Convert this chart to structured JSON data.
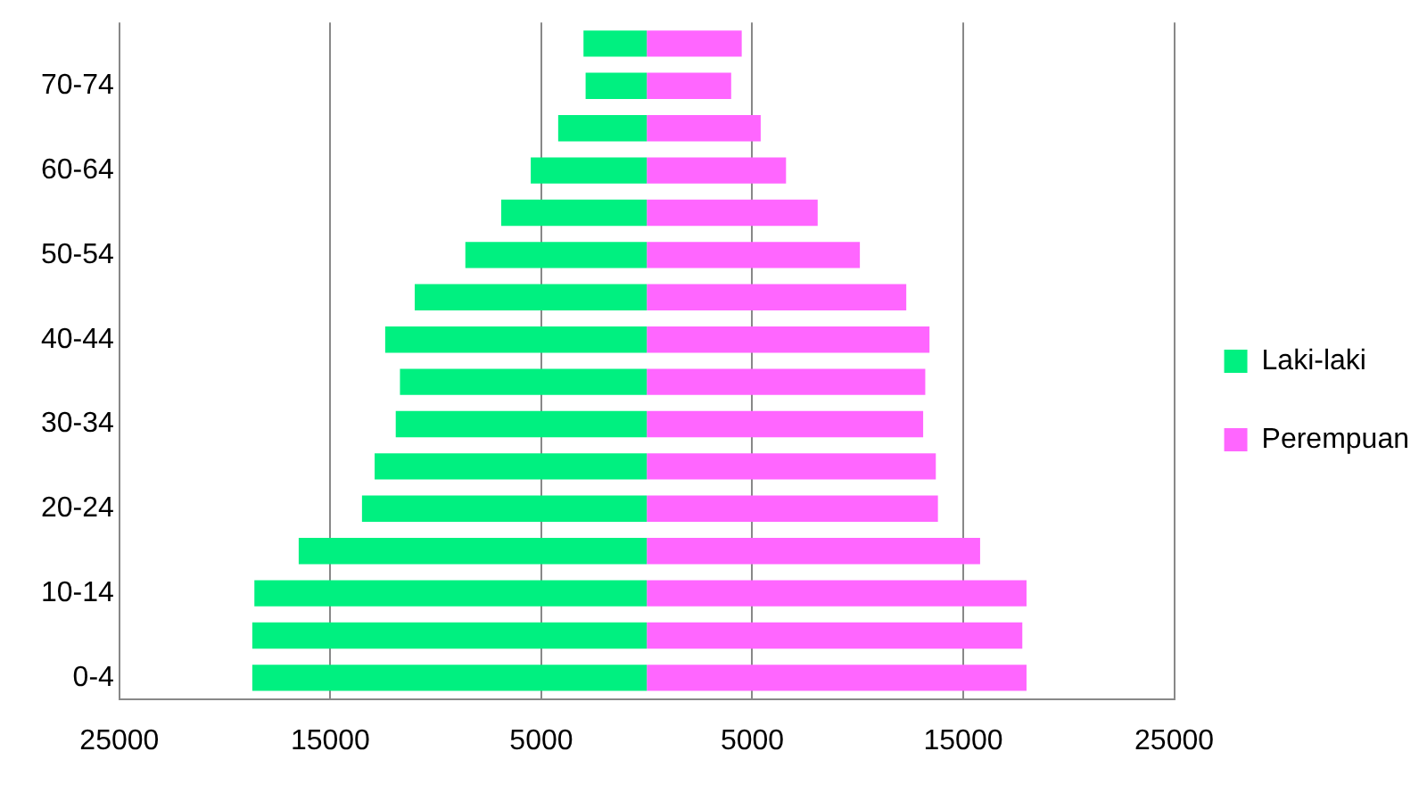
{
  "chart_data": {
    "type": "bar",
    "orientation": "horizontal",
    "stacked": true,
    "categories": [
      null,
      "70-74",
      null,
      "60-64",
      null,
      "50-54",
      null,
      "40-44",
      null,
      "30-34",
      null,
      "20-24",
      null,
      "10-14",
      null,
      "0-4"
    ],
    "series": [
      {
        "name": "Laki-laki",
        "color": "#00f080",
        "values": [
          -3000,
          -2900,
          -4200,
          -5500,
          -6900,
          -8600,
          -11000,
          -12400,
          -11700,
          -11900,
          -12900,
          -13500,
          -16500,
          -18600,
          -18700,
          -18700
        ]
      },
      {
        "name": "Perempuan",
        "color": "#ff66ff",
        "values": [
          4500,
          4000,
          5400,
          6600,
          8100,
          10100,
          12300,
          13400,
          13200,
          13100,
          13700,
          13800,
          15800,
          18000,
          17800,
          18000
        ]
      }
    ],
    "xlim": [
      -25000,
      25000
    ],
    "xticks": [
      {
        "value": -25000,
        "label": "25000"
      },
      {
        "value": -15000,
        "label": "15000"
      },
      {
        "value": -5000,
        "label": "5000"
      },
      5000,
      15000,
      25000
    ],
    "grid": "x",
    "legend": "right"
  }
}
